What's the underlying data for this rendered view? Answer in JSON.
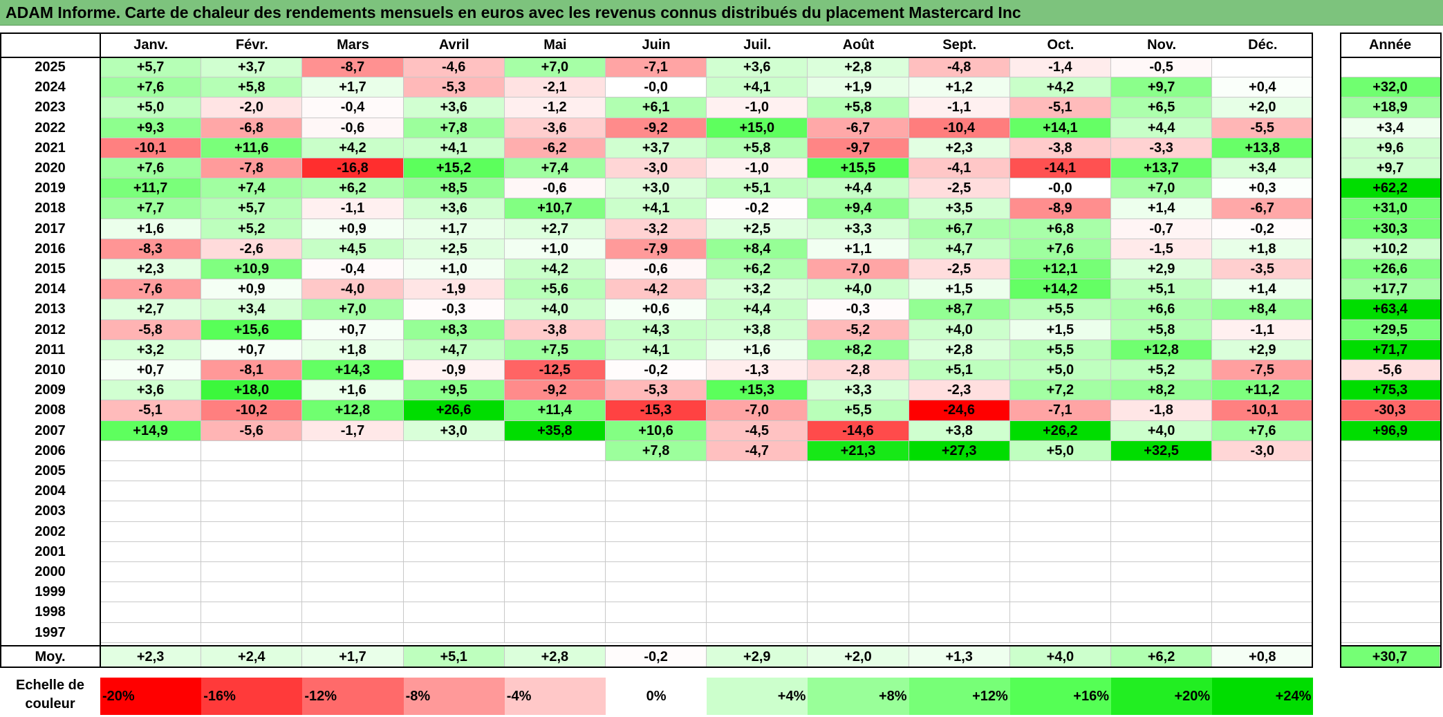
{
  "title": "ADAM Informe. Carte de chaleur des rendements mensuels en euros avec les revenus connus distribués du placement Mastercard Inc",
  "chart_data": {
    "type": "heatmap",
    "months": [
      "Janv.",
      "Févr.",
      "Mars",
      "Avril",
      "Mai",
      "Juin",
      "Juil.",
      "Août",
      "Sept.",
      "Oct.",
      "Nov.",
      "Déc."
    ],
    "year_header": "Année",
    "rows": [
      {
        "year": "2025",
        "values": [
          "+5,7",
          "+3,7",
          "-8,7",
          "-4,6",
          "+7,0",
          "-7,1",
          "+3,6",
          "+2,8",
          "-4,8",
          "-1,4",
          "-0,5",
          ""
        ],
        "annual": ""
      },
      {
        "year": "2024",
        "values": [
          "+7,6",
          "+5,8",
          "+1,7",
          "-5,3",
          "-2,1",
          "-0,0",
          "+4,1",
          "+1,9",
          "+1,2",
          "+4,2",
          "+9,7",
          "+0,4"
        ],
        "annual": "+32,0"
      },
      {
        "year": "2023",
        "values": [
          "+5,0",
          "-2,0",
          "-0,4",
          "+3,6",
          "-1,2",
          "+6,1",
          "-1,0",
          "+5,8",
          "-1,1",
          "-5,1",
          "+6,5",
          "+2,0"
        ],
        "annual": "+18,9"
      },
      {
        "year": "2022",
        "values": [
          "+9,3",
          "-6,8",
          "-0,6",
          "+7,8",
          "-3,6",
          "-9,2",
          "+15,0",
          "-6,7",
          "-10,4",
          "+14,1",
          "+4,4",
          "-5,5"
        ],
        "annual": "+3,4"
      },
      {
        "year": "2021",
        "values": [
          "-10,1",
          "+11,6",
          "+4,2",
          "+4,1",
          "-6,2",
          "+3,7",
          "+5,8",
          "-9,7",
          "+2,3",
          "-3,8",
          "-3,3",
          "+13,8"
        ],
        "annual": "+9,6"
      },
      {
        "year": "2020",
        "values": [
          "+7,6",
          "-7,8",
          "-16,8",
          "+15,2",
          "+7,4",
          "-3,0",
          "-1,0",
          "+15,5",
          "-4,1",
          "-14,1",
          "+13,7",
          "+3,4"
        ],
        "annual": "+9,7"
      },
      {
        "year": "2019",
        "values": [
          "+11,7",
          "+7,4",
          "+6,2",
          "+8,5",
          "-0,6",
          "+3,0",
          "+5,1",
          "+4,4",
          "-2,5",
          "-0,0",
          "+7,0",
          "+0,3"
        ],
        "annual": "+62,2"
      },
      {
        "year": "2018",
        "values": [
          "+7,7",
          "+5,7",
          "-1,1",
          "+3,6",
          "+10,7",
          "+4,1",
          "-0,2",
          "+9,4",
          "+3,5",
          "-8,9",
          "+1,4",
          "-6,7"
        ],
        "annual": "+31,0"
      },
      {
        "year": "2017",
        "values": [
          "+1,6",
          "+5,2",
          "+0,9",
          "+1,7",
          "+2,7",
          "-3,2",
          "+2,5",
          "+3,3",
          "+6,7",
          "+6,8",
          "-0,7",
          "-0,2"
        ],
        "annual": "+30,3"
      },
      {
        "year": "2016",
        "values": [
          "-8,3",
          "-2,6",
          "+4,5",
          "+2,5",
          "+1,0",
          "-7,9",
          "+8,4",
          "+1,1",
          "+4,7",
          "+7,6",
          "-1,5",
          "+1,8"
        ],
        "annual": "+10,2"
      },
      {
        "year": "2015",
        "values": [
          "+2,3",
          "+10,9",
          "-0,4",
          "+1,0",
          "+4,2",
          "-0,6",
          "+6,2",
          "-7,0",
          "-2,5",
          "+12,1",
          "+2,9",
          "-3,5"
        ],
        "annual": "+26,6"
      },
      {
        "year": "2014",
        "values": [
          "-7,6",
          "+0,9",
          "-4,0",
          "-1,9",
          "+5,6",
          "-4,2",
          "+3,2",
          "+4,0",
          "+1,5",
          "+14,2",
          "+5,1",
          "+1,4"
        ],
        "annual": "+17,7"
      },
      {
        "year": "2013",
        "values": [
          "+2,7",
          "+3,4",
          "+7,0",
          "-0,3",
          "+4,0",
          "+0,6",
          "+4,4",
          "-0,3",
          "+8,7",
          "+5,5",
          "+6,6",
          "+8,4"
        ],
        "annual": "+63,4"
      },
      {
        "year": "2012",
        "values": [
          "-5,8",
          "+15,6",
          "+0,7",
          "+8,3",
          "-3,8",
          "+4,3",
          "+3,8",
          "-5,2",
          "+4,0",
          "+1,5",
          "+5,8",
          "-1,1"
        ],
        "annual": "+29,5"
      },
      {
        "year": "2011",
        "values": [
          "+3,2",
          "+0,7",
          "+1,8",
          "+4,7",
          "+7,5",
          "+4,1",
          "+1,6",
          "+8,2",
          "+2,8",
          "+5,5",
          "+12,8",
          "+2,9"
        ],
        "annual": "+71,7"
      },
      {
        "year": "2010",
        "values": [
          "+0,7",
          "-8,1",
          "+14,3",
          "-0,9",
          "-12,5",
          "-0,2",
          "-1,3",
          "-2,8",
          "+5,1",
          "+5,0",
          "+5,2",
          "-7,5"
        ],
        "annual": "-5,6"
      },
      {
        "year": "2009",
        "values": [
          "+3,6",
          "+18,0",
          "+1,6",
          "+9,5",
          "-9,2",
          "-5,3",
          "+15,3",
          "+3,3",
          "-2,3",
          "+7,2",
          "+8,2",
          "+11,2"
        ],
        "annual": "+75,3"
      },
      {
        "year": "2008",
        "values": [
          "-5,1",
          "-10,2",
          "+12,8",
          "+26,6",
          "+11,4",
          "-15,3",
          "-7,0",
          "+5,5",
          "-24,6",
          "-7,1",
          "-1,8",
          "-10,1"
        ],
        "annual": "-30,3"
      },
      {
        "year": "2007",
        "values": [
          "+14,9",
          "-5,6",
          "-1,7",
          "+3,0",
          "+35,8",
          "+10,6",
          "-4,5",
          "-14,6",
          "+3,8",
          "+26,2",
          "+4,0",
          "+7,6"
        ],
        "annual": "+96,9"
      },
      {
        "year": "2006",
        "values": [
          "",
          "",
          "",
          "",
          "",
          "+7,8",
          "-4,7",
          "+21,3",
          "+27,3",
          "+5,0",
          "+32,5",
          "-3,0"
        ],
        "annual": ""
      },
      {
        "year": "2005",
        "values": [
          "",
          "",
          "",
          "",
          "",
          "",
          "",
          "",
          "",
          "",
          "",
          ""
        ],
        "annual": ""
      },
      {
        "year": "2004",
        "values": [
          "",
          "",
          "",
          "",
          "",
          "",
          "",
          "",
          "",
          "",
          "",
          ""
        ],
        "annual": ""
      },
      {
        "year": "2003",
        "values": [
          "",
          "",
          "",
          "",
          "",
          "",
          "",
          "",
          "",
          "",
          "",
          ""
        ],
        "annual": ""
      },
      {
        "year": "2002",
        "values": [
          "",
          "",
          "",
          "",
          "",
          "",
          "",
          "",
          "",
          "",
          "",
          ""
        ],
        "annual": ""
      },
      {
        "year": "2001",
        "values": [
          "",
          "",
          "",
          "",
          "",
          "",
          "",
          "",
          "",
          "",
          "",
          ""
        ],
        "annual": ""
      },
      {
        "year": "2000",
        "values": [
          "",
          "",
          "",
          "",
          "",
          "",
          "",
          "",
          "",
          "",
          "",
          ""
        ],
        "annual": ""
      },
      {
        "year": "1999",
        "values": [
          "",
          "",
          "",
          "",
          "",
          "",
          "",
          "",
          "",
          "",
          "",
          ""
        ],
        "annual": ""
      },
      {
        "year": "1998",
        "values": [
          "",
          "",
          "",
          "",
          "",
          "",
          "",
          "",
          "",
          "",
          "",
          ""
        ],
        "annual": ""
      },
      {
        "year": "1997",
        "values": [
          "",
          "",
          "",
          "",
          "",
          "",
          "",
          "",
          "",
          "",
          "",
          ""
        ],
        "annual": ""
      }
    ],
    "average": {
      "label": "Moy.",
      "values": [
        "+2,3",
        "+2,4",
        "+1,7",
        "+5,1",
        "+2,8",
        "-0,2",
        "+2,9",
        "+2,0",
        "+1,3",
        "+4,0",
        "+6,2",
        "+0,8"
      ],
      "annual": "+30,7"
    },
    "color_scale": {
      "label": "Echelle de couleur",
      "steps": [
        {
          "label": "-20%",
          "value": -20,
          "color": "#ff0000"
        },
        {
          "label": "-16%",
          "value": -16,
          "color": "#ff3a3a"
        },
        {
          "label": "-12%",
          "value": -12,
          "color": "#ff6a6a"
        },
        {
          "label": "-8%",
          "value": -8,
          "color": "#ff9999"
        },
        {
          "label": "-4%",
          "value": -4,
          "color": "#ffc8c8"
        },
        {
          "label": "0%",
          "value": 0,
          "color": "#ffffff"
        },
        {
          "label": "+4%",
          "value": 4,
          "color": "#ccffcc"
        },
        {
          "label": "+8%",
          "value": 8,
          "color": "#99ff99"
        },
        {
          "label": "+12%",
          "value": 12,
          "color": "#77ff77"
        },
        {
          "label": "+16%",
          "value": 16,
          "color": "#55ff55"
        },
        {
          "label": "+20%",
          "value": 20,
          "color": "#22ee22"
        },
        {
          "label": "+24%",
          "value": 24,
          "color": "#00dd00"
        }
      ]
    }
  }
}
